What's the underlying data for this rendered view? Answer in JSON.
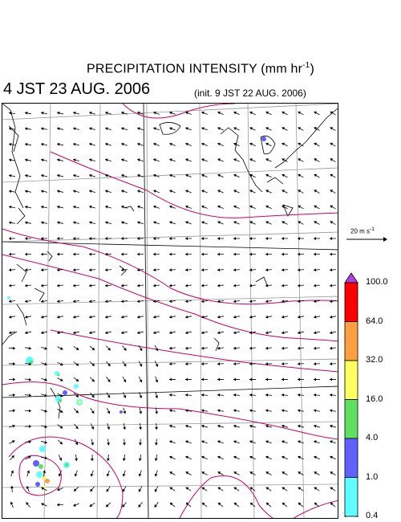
{
  "header": {
    "title_main": "PRECIPITATION INTENSITY (mm hr",
    "title_exp": "-1",
    "title_close": ")",
    "time": "4 JST 23 AUG. 2006",
    "init": "(init. 9 JST 22 AUG. 2006)"
  },
  "reference_vector": {
    "label_main": "20 m s",
    "label_exp": "-1"
  },
  "colorbar": {
    "labels": [
      "100.0",
      "64.0",
      "32.0",
      "16.0",
      "4.0",
      "1.0",
      "0.4"
    ],
    "colors": [
      "#ff0000",
      "#ffa040",
      "#ffff60",
      "#60e060",
      "#6060ff",
      "#60ffff"
    ],
    "top_arrow_color": "#b040e0",
    "bottom_arrow_color": "#ffffff"
  },
  "map_colors": {
    "isobar": "#cc0066",
    "grid": "#999999",
    "coast": "#000000"
  }
}
